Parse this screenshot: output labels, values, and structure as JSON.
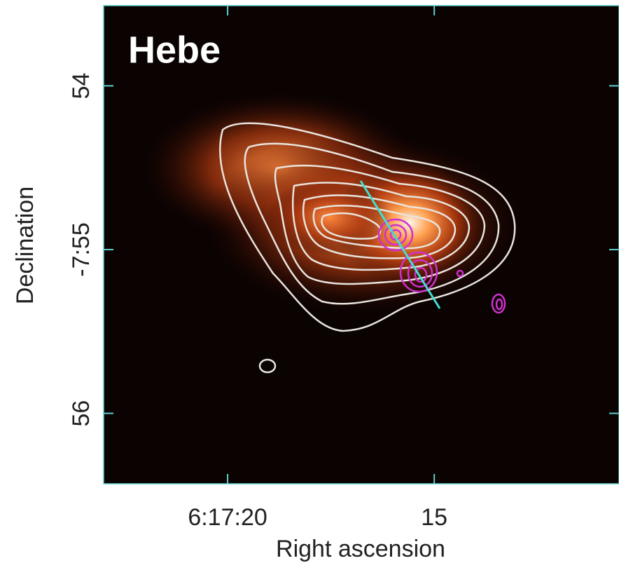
{
  "chart_data": {
    "type": "image",
    "title": "Hebe",
    "xlabel": "Right ascension",
    "ylabel": "Declination",
    "xlim": [
      23.0,
      10.53
    ],
    "xticks": [
      {
        "value": 20,
        "label": "6:17:20"
      },
      15
    ],
    "ylim": [
      53.51,
      56.43
    ],
    "yticks": [
      54,
      {
        "value": 55,
        "label": "-7:55"
      },
      56
    ]
  }
}
